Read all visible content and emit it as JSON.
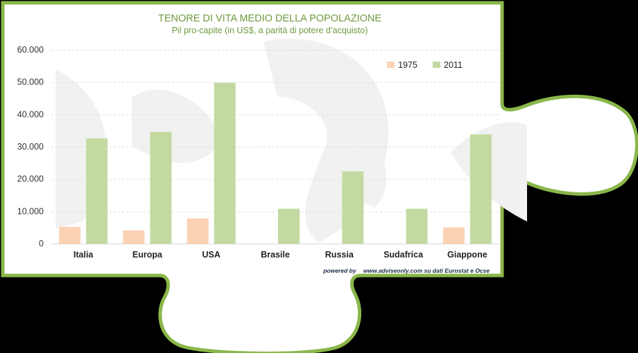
{
  "colors": {
    "series_1975": "#fbd2b3",
    "series_2011": "#c3d9a1",
    "frame": "#8ab64a",
    "title": "#6f9a3f",
    "background": "#000000"
  },
  "footer": {
    "powered": "powered by",
    "source": "www.adviseonly.com su dati Eurostat e Ocse"
  },
  "chart_data": {
    "type": "bar",
    "title": "TENORE DI VITA MEDIO DELLA POPOLAZIONE",
    "subtitle": "Pil pro-capite (in US$, a parità di potere d’acquisto)",
    "categories": [
      "Italia",
      "Europa",
      "USA",
      "Brasile",
      "Russia",
      "Sudafrica",
      "Giappone"
    ],
    "series": [
      {
        "name": "1975",
        "values": [
          5200,
          4100,
          7800,
          0,
          0,
          0,
          5000
        ]
      },
      {
        "name": "2011",
        "values": [
          32600,
          34600,
          49800,
          10800,
          22400,
          10800,
          33800
        ]
      }
    ],
    "ylim": [
      0,
      60000
    ],
    "yticks": [
      0,
      10000,
      20000,
      30000,
      40000,
      50000,
      60000
    ],
    "ytick_labels": [
      "0",
      "10.000",
      "20.000",
      "30.000",
      "40.000",
      "50.000",
      "60.000"
    ],
    "grid": true,
    "legend_position": "top-right"
  }
}
